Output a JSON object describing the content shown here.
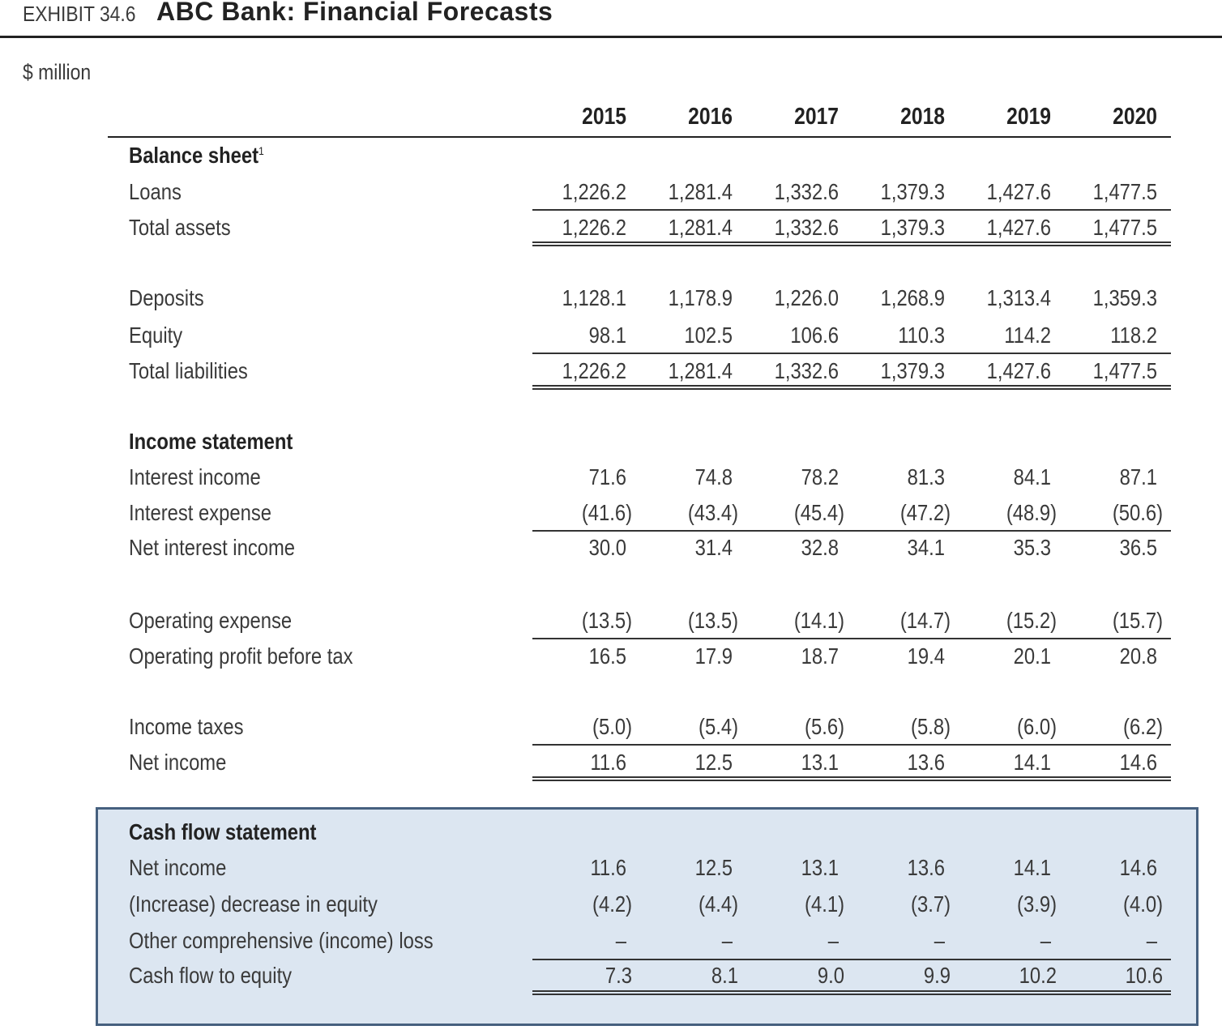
{
  "header": {
    "exhibit": "EXHIBIT 34.6",
    "title": "ABC Bank: Financial Forecasts",
    "units": "$ million"
  },
  "years": [
    "2015",
    "2016",
    "2017",
    "2018",
    "2019",
    "2020"
  ],
  "sections": {
    "balance_sheet": {
      "title": "Balance sheet",
      "footnote": "1",
      "rows": [
        {
          "label": "Loans",
          "values": [
            "1,226.2",
            "1,281.4",
            "1,332.6",
            "1,379.3",
            "1,427.6",
            "1,477.5"
          ]
        },
        {
          "label": "Total assets",
          "values": [
            "1,226.2",
            "1,281.4",
            "1,332.6",
            "1,379.3",
            "1,427.6",
            "1,477.5"
          ]
        },
        {
          "label": "Deposits",
          "values": [
            "1,128.1",
            "1,178.9",
            "1,226.0",
            "1,268.9",
            "1,313.4",
            "1,359.3"
          ]
        },
        {
          "label": "Equity",
          "values": [
            "98.1",
            "102.5",
            "106.6",
            "110.3",
            "114.2",
            "118.2"
          ]
        },
        {
          "label": "Total liabilities",
          "values": [
            "1,226.2",
            "1,281.4",
            "1,332.6",
            "1,379.3",
            "1,427.6",
            "1,477.5"
          ]
        }
      ]
    },
    "income_statement": {
      "title": "Income statement",
      "rows": [
        {
          "label": "Interest income",
          "values": [
            "71.6",
            "74.8",
            "78.2",
            "81.3",
            "84.1",
            "87.1"
          ]
        },
        {
          "label": "Interest expense",
          "values": [
            "(41.6)",
            "(43.4)",
            "(45.4)",
            "(47.2)",
            "(48.9)",
            "(50.6)"
          ]
        },
        {
          "label": "Net interest income",
          "values": [
            "30.0",
            "31.4",
            "32.8",
            "34.1",
            "35.3",
            "36.5"
          ]
        },
        {
          "label": "Operating expense",
          "values": [
            "(13.5)",
            "(13.5)",
            "(14.1)",
            "(14.7)",
            "(15.2)",
            "(15.7)"
          ]
        },
        {
          "label": "Operating profit before tax",
          "values": [
            "16.5",
            "17.9",
            "18.7",
            "19.4",
            "20.1",
            "20.8"
          ]
        },
        {
          "label": "Income taxes",
          "values": [
            "(5.0)",
            "(5.4)",
            "(5.6)",
            "(5.8)",
            "(6.0)",
            "(6.2)"
          ]
        },
        {
          "label": "Net income",
          "values": [
            "11.6",
            "12.5",
            "13.1",
            "13.6",
            "14.1",
            "14.6"
          ]
        }
      ]
    },
    "cash_flow": {
      "title": "Cash flow statement",
      "rows": [
        {
          "label": "Net income",
          "values": [
            "11.6",
            "12.5",
            "13.1",
            "13.6",
            "14.1",
            "14.6"
          ]
        },
        {
          "label": "(Increase) decrease in equity",
          "values": [
            "(4.2)",
            "(4.4)",
            "(4.1)",
            "(3.7)",
            "(3.9)",
            "(4.0)"
          ]
        },
        {
          "label": "Other comprehensive (income) loss",
          "values": [
            "–",
            "–",
            "–",
            "–",
            "–",
            "–"
          ]
        },
        {
          "label": "Cash flow to equity",
          "values": [
            "7.3",
            "8.1",
            "9.0",
            "9.9",
            "10.2",
            "10.6"
          ]
        }
      ]
    }
  }
}
